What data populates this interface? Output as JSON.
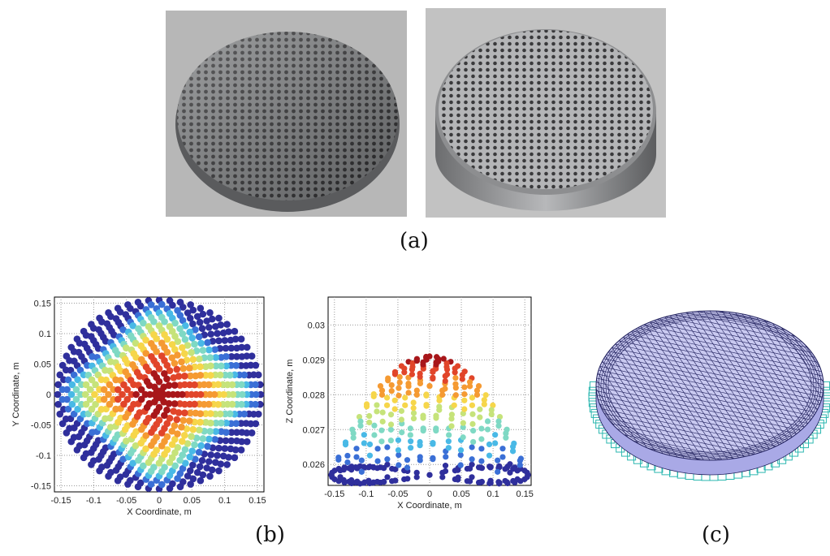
{
  "panel_labels": {
    "a": "(a)",
    "b": "(b)",
    "c": "(c)"
  },
  "photos": [
    {
      "name": "perforated-disc-photo-left",
      "background": "#b9b9b9",
      "metal": "#8e9092"
    },
    {
      "name": "perforated-disc-photo-right",
      "background": "#c4c4c4",
      "metal": "#a8a9ab"
    }
  ],
  "colormap": [
    "#2f2f9c",
    "#3a6fd6",
    "#49b9e6",
    "#7fd9c4",
    "#c6e37a",
    "#f6d64a",
    "#f59a32",
    "#e1452a",
    "#a8171a"
  ],
  "mesh_colors": {
    "fill": "#c9c9f0",
    "line": "#1d1d5a",
    "edge": "#2bb7b0"
  },
  "chart_data": [
    {
      "type": "scatter",
      "view": "top",
      "xlabel": "X Coordinate, m",
      "ylabel": "Y Coordinate, m",
      "xlim": [
        -0.16,
        0.16
      ],
      "ylim": [
        -0.16,
        0.16
      ],
      "xticks": [
        "-0.15",
        "-0.1",
        "-0.05",
        "0",
        "0.05",
        "0.1",
        "0.15"
      ],
      "yticks": [
        "0.15",
        "0.1",
        "0.05",
        "0",
        "-0.05",
        "-0.1",
        "-0.15"
      ],
      "ytick_values": [
        0.15,
        0.1,
        0.05,
        0,
        -0.05,
        -0.1,
        -0.15
      ],
      "xtick_values": [
        -0.15,
        -0.1,
        -0.05,
        0,
        0.05,
        0.1,
        0.15
      ],
      "grid": true,
      "radius": 0.155,
      "color_by": "height"
    },
    {
      "type": "scatter",
      "view": "side",
      "xlabel": "X Coordinate, m",
      "ylabel": "Z Coordinate, m",
      "xlim": [
        -0.16,
        0.16
      ],
      "ylim": [
        0.0254,
        0.0308
      ],
      "xticks": [
        "-0.15",
        "-0.1",
        "-0.05",
        "0",
        "0.05",
        "0.1",
        "0.15"
      ],
      "xtick_values": [
        -0.15,
        -0.1,
        -0.05,
        0,
        0.05,
        0.1,
        0.15
      ],
      "yticks": [
        "0.03",
        "0.029",
        "0.028",
        "0.027",
        "0.026"
      ],
      "ytick_values": [
        0.03,
        0.029,
        0.028,
        0.027,
        0.026
      ],
      "grid": true,
      "z_base": 0.0257,
      "z_top": 0.0291
    }
  ]
}
